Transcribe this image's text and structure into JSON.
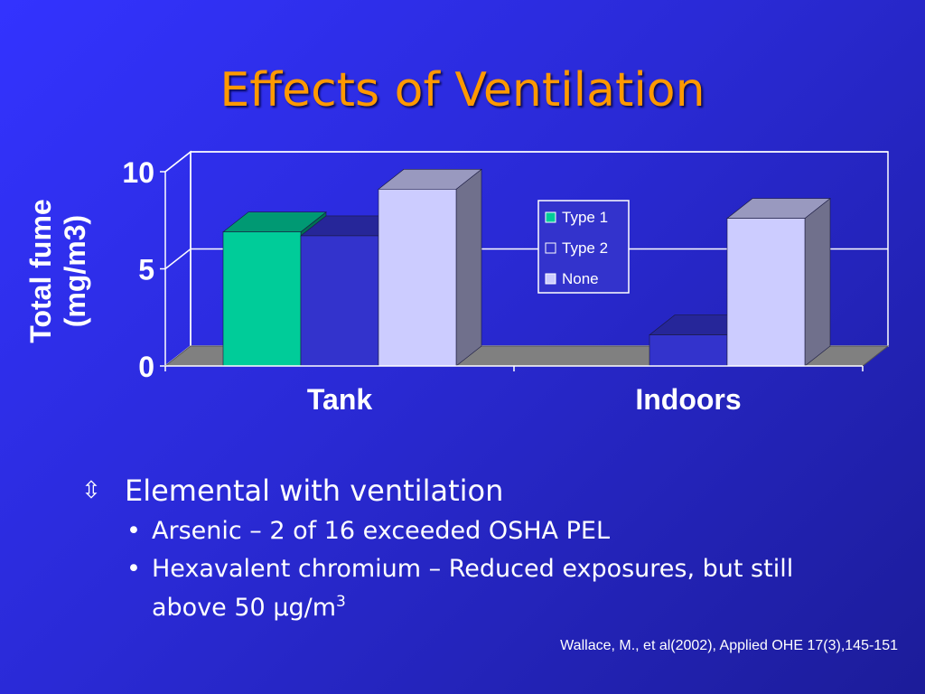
{
  "slide": {
    "title": "Effects of Ventilation",
    "bullets": {
      "level1": "Elemental with ventilation",
      "level1_icon": "arrow-icon",
      "level2": [
        "Arsenic – 2 of 16 exceeded OSHA PEL",
        "Hexavalent chromium – Reduced exposures, but still above 50 μg/m"
      ],
      "superscript": "3"
    },
    "citation": "Wallace, M., et al(2002), Applied OHE 17(3),145-151"
  },
  "chart_data": {
    "type": "bar",
    "style": "3d-clustered",
    "categories": [
      "Tank",
      "Indoors"
    ],
    "series": [
      {
        "name": "Type 1",
        "values": [
          6.9,
          0
        ],
        "color": "#00cc99"
      },
      {
        "name": "Type 2",
        "values": [
          6.7,
          1.6
        ],
        "color": "#3333cc"
      },
      {
        "name": "None",
        "values": [
          9.1,
          7.6
        ],
        "color": "#ccccff"
      }
    ],
    "ylabel_lines": [
      "Total fume",
      "(mg/m3)"
    ],
    "xlabel": "",
    "yticks": [
      0,
      5,
      10
    ],
    "ylim": [
      0,
      10
    ],
    "grid": true,
    "legend": "upper-right inside plot"
  }
}
